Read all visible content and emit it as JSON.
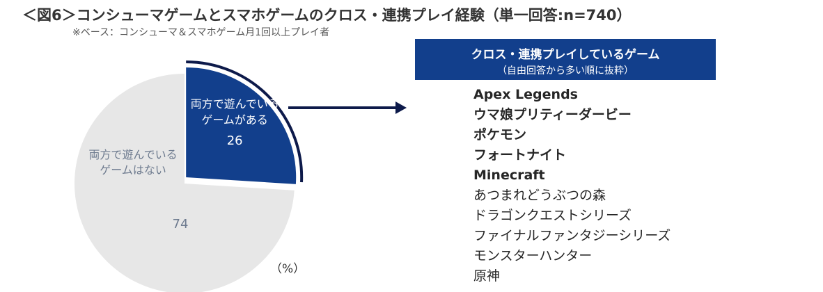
{
  "title": "＜図6＞コンシューマゲームとスマホゲームのクロス・連携プレイ経験（単一回答:n=740）",
  "subtitle": "※ベース：コンシューマ＆スマホゲーム月1回以上プレイ者",
  "unit_label": "（%）",
  "colors": {
    "navy": "#123F8C",
    "gray": "#E7E7E7",
    "outline": "#0D1A4A"
  },
  "chart_data": {
    "type": "pie",
    "slices": [
      {
        "label": [
          "両方で遊んでいる",
          "ゲームがある"
        ],
        "value": 26,
        "color": "#123F8C",
        "exploded": true
      },
      {
        "label": [
          "両方で遊んでいる",
          "ゲームはない"
        ],
        "value": 74,
        "color": "#E7E7E7",
        "exploded": false
      }
    ]
  },
  "list_header": {
    "title": "クロス・連携プレイしているゲーム",
    "subtitle": "（自由回答から多い順に抜粋）"
  },
  "games": [
    {
      "name": "Apex Legends",
      "bold": true
    },
    {
      "name": "ウマ娘プリティーダービー",
      "bold": true
    },
    {
      "name": "ポケモン",
      "bold": true
    },
    {
      "name": "フォートナイト",
      "bold": true
    },
    {
      "name": "Minecraft",
      "bold": true
    },
    {
      "name": "あつまれどうぶつの森",
      "bold": false
    },
    {
      "name": "ドラゴンクエストシリーズ",
      "bold": false
    },
    {
      "name": "ファイナルファンタジーシリーズ",
      "bold": false
    },
    {
      "name": "モンスターハンター",
      "bold": false
    },
    {
      "name": "原神",
      "bold": false
    }
  ]
}
